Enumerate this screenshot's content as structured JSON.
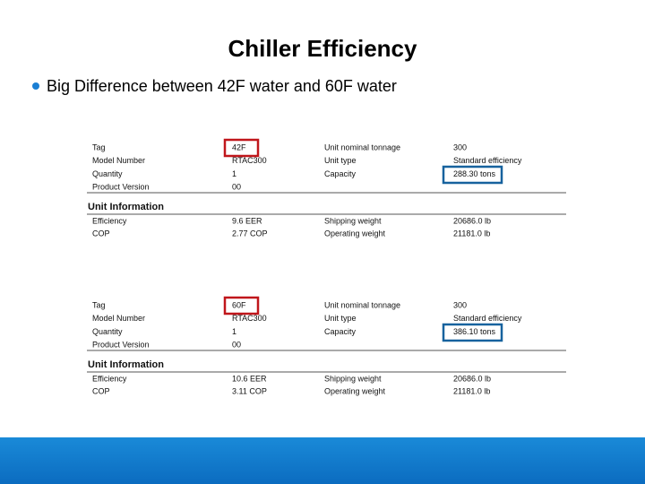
{
  "title": "Chiller Efficiency",
  "bullets": [
    "Big Difference between 42F water and 60F water"
  ],
  "tables": [
    {
      "rows": [
        [
          "Tag",
          "42F",
          "Unit nominal tonnage",
          "300"
        ],
        [
          "Model Number",
          "RTAC300",
          "Unit type",
          "Standard efficiency"
        ],
        [
          "Quantity",
          "1",
          "Capacity",
          "288.30 tons"
        ],
        [
          "Product Version",
          "00"
        ]
      ],
      "section_title": "Unit Information",
      "info_rows": [
        [
          "Efficiency",
          "9.6 EER",
          "Shipping weight",
          "20686.0 lb"
        ],
        [
          "COP",
          "2.77 COP",
          "Operating weight",
          "21181.0 lb"
        ]
      ]
    },
    {
      "rows": [
        [
          "Tag",
          "60F",
          "Unit nominal tonnage",
          "300"
        ],
        [
          "Model Number",
          "RTAC300",
          "Unit type",
          "Standard efficiency"
        ],
        [
          "Quantity",
          "1",
          "Capacity",
          "386.10 tons"
        ],
        [
          "Product Version",
          "00"
        ]
      ],
      "section_title": "Unit Information",
      "info_rows": [
        [
          "Efficiency",
          "10.6 EER",
          "Shipping weight",
          "20686.0 lb"
        ],
        [
          "COP",
          "3.11 COP",
          "Operating weight",
          "21181.0 lb"
        ]
      ]
    }
  ]
}
